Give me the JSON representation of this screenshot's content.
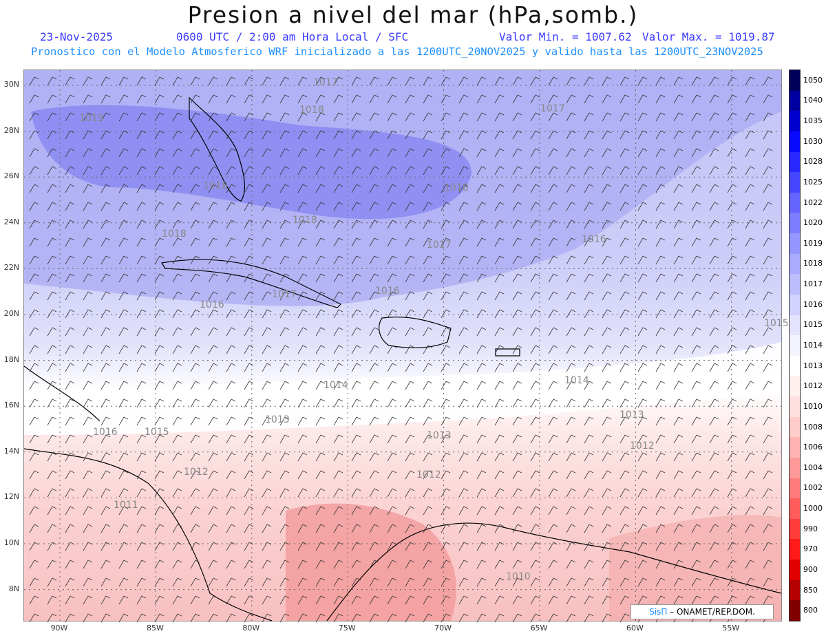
{
  "header": {
    "title": "Presion a nivel del mar (hPa,somb.)",
    "date": "23-Nov-2025",
    "time": "0600 UTC / 2:00 am Hora Local / SFC",
    "min_label": "Valor Min. = 1007.62",
    "max_label": "Valor Max. = 1019.87",
    "model_line": "Pronostico con el Modelo Atmosferico WRF inicializado a las 1200UTC_20NOV2025 y valido hasta las  1200UTC_23NOV2025"
  },
  "map": {
    "lat_labels": [
      "30N",
      "28N",
      "26N",
      "24N",
      "22N",
      "20N",
      "18N",
      "16N",
      "14N",
      "12N",
      "10N",
      "8N"
    ],
    "lon_labels": [
      "90W",
      "85W",
      "80W",
      "75W",
      "70W",
      "65W",
      "60W",
      "55W"
    ],
    "contour_labels": [
      "1017",
      "1019",
      "1018",
      "1017",
      "1018",
      "1018",
      "1018",
      "1018",
      "1017",
      "1016",
      "1017",
      "1016",
      "1016",
      "1015",
      "1014",
      "1014",
      "1013",
      "1013",
      "1013",
      "1016",
      "1015",
      "1012",
      "1012",
      "1012",
      "1010",
      "1011"
    ],
    "colors": {
      "high": "#7b7bf5",
      "mid": "#c8c8f8",
      "neutral": "#ffffff",
      "low": "#f6a7a7"
    }
  },
  "colorbar": {
    "levels": [
      "1050",
      "1040",
      "1035",
      "1030",
      "1028",
      "1025",
      "1022",
      "1020",
      "1019",
      "1018",
      "1017",
      "1016",
      "1015",
      "1014",
      "1013",
      "1012",
      "1010",
      "1008",
      "1006",
      "1004",
      "1002",
      "1000",
      "990",
      "970",
      "900",
      "850",
      "800"
    ],
    "colors": [
      "#00005a",
      "#0000a0",
      "#0000d0",
      "#0a0aff",
      "#2828ff",
      "#4646ff",
      "#6464ff",
      "#7d7dff",
      "#9696ff",
      "#aaaaff",
      "#bebeff",
      "#d2d2ff",
      "#e4e4ff",
      "#f4f4ff",
      "#ffffff",
      "#fff0f0",
      "#ffe0e0",
      "#ffcccc",
      "#ffb4b4",
      "#ff9a9a",
      "#ff7c7c",
      "#ff5c5c",
      "#ff3c3c",
      "#ff1a1a",
      "#e00000",
      "#b40000",
      "#800000"
    ]
  },
  "credit": {
    "brand": "SisΠ",
    "text": "– ONAMET/REP.DOM."
  }
}
